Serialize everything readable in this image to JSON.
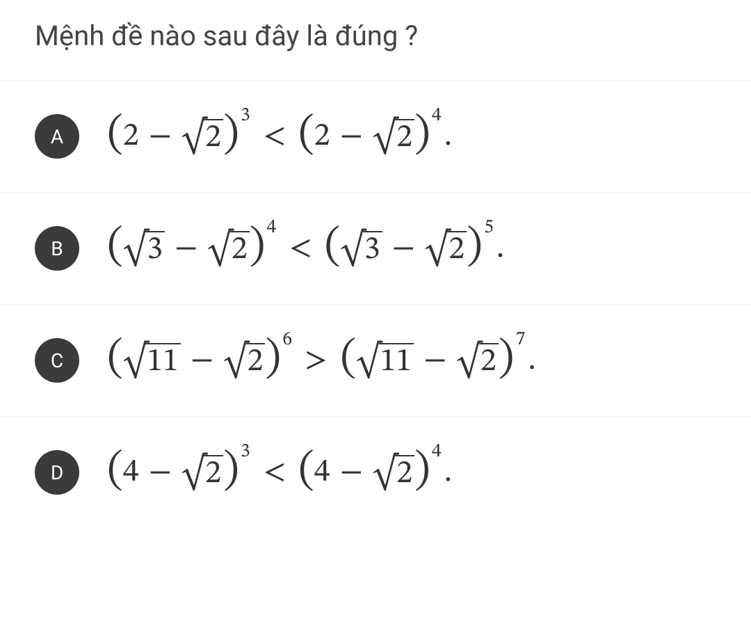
{
  "question": {
    "text": "Mệnh đề nào sau đây là đúng ?"
  },
  "colors": {
    "badge_bg": "#3b3b3b",
    "badge_fg": "#ffffff",
    "text": "#444444",
    "math": "#333333",
    "divider": "#ededed",
    "background": "#ffffff"
  },
  "typography": {
    "question_fontsize": 40,
    "math_fontsize": 46,
    "badge_fontsize": 28,
    "sup_fontsize": 28
  },
  "options": [
    {
      "letter": "A",
      "lhs_base": "2",
      "lhs_sqrt": "2",
      "lhs_exp": "3",
      "rel": "<",
      "rhs_base": "2",
      "rhs_sqrt": "2",
      "rhs_exp": "4",
      "base_has_sqrt": false
    },
    {
      "letter": "B",
      "lhs_base": "3",
      "lhs_sqrt": "2",
      "lhs_exp": "4",
      "rel": "<",
      "rhs_base": "3",
      "rhs_sqrt": "2",
      "rhs_exp": "5",
      "base_has_sqrt": true
    },
    {
      "letter": "C",
      "lhs_base": "11",
      "lhs_sqrt": "2",
      "lhs_exp": "6",
      "rel": ">",
      "rhs_base": "11",
      "rhs_sqrt": "2",
      "rhs_exp": "7",
      "base_has_sqrt": true
    },
    {
      "letter": "D",
      "lhs_base": "4",
      "lhs_sqrt": "2",
      "lhs_exp": "3",
      "rel": "<",
      "rhs_base": "4",
      "rhs_sqrt": "2",
      "rhs_exp": "4",
      "base_has_sqrt": false
    }
  ]
}
